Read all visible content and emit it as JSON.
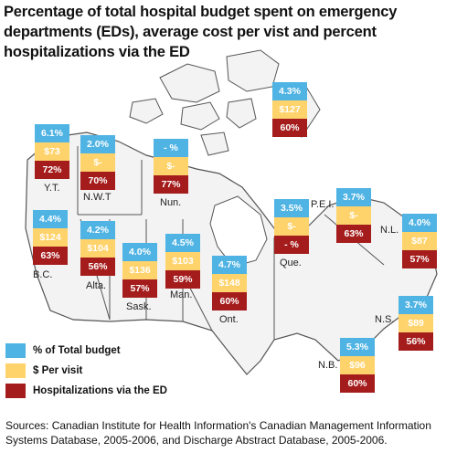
{
  "title": "Percentage of total hospital budget spent on emergency departments (EDs), average cost per vist and percent hospitalizations via the ED",
  "colors": {
    "pct_budget": "#4fb3e3",
    "cost_per_visit": "#ffd36b",
    "hospitalizations": "#a51c1c",
    "land": "#f3f3f3",
    "border": "#555555"
  },
  "regions": [
    {
      "id": "yt",
      "name": "Y.T.",
      "pct": "6.1%",
      "cost": "$73",
      "hosp": "72%"
    },
    {
      "id": "nwt",
      "name": "N.W.T",
      "pct": "2.0%",
      "cost": "$-",
      "hosp": "70%"
    },
    {
      "id": "nun",
      "name": "Nun.",
      "pct": "- %",
      "cost": "$-",
      "hosp": "77%"
    },
    {
      "id": "canada",
      "name": "",
      "pct": "4.3%",
      "cost": "$127",
      "hosp": "60%"
    },
    {
      "id": "bc",
      "name": "B.C.",
      "pct": "4.4%",
      "cost": "$124",
      "hosp": "63%"
    },
    {
      "id": "alta",
      "name": "Alta.",
      "pct": "4.2%",
      "cost": "$104",
      "hosp": "56%"
    },
    {
      "id": "sask",
      "name": "Sask.",
      "pct": "4.0%",
      "cost": "$136",
      "hosp": "57%"
    },
    {
      "id": "man",
      "name": "Man.",
      "pct": "4.5%",
      "cost": "$103",
      "hosp": "59%"
    },
    {
      "id": "ont",
      "name": "Ont.",
      "pct": "4.7%",
      "cost": "$148",
      "hosp": "60%"
    },
    {
      "id": "que",
      "name": "Que.",
      "pct": "3.5%",
      "cost": "$-",
      "hosp": "- %"
    },
    {
      "id": "pei",
      "name": "P.E.I.",
      "pct": "3.7%",
      "cost": "$-",
      "hosp": "63%"
    },
    {
      "id": "nl",
      "name": "N.L.",
      "pct": "4.0%",
      "cost": "$87",
      "hosp": "57%"
    },
    {
      "id": "ns",
      "name": "N.S.",
      "pct": "3.7%",
      "cost": "$89",
      "hosp": "56%"
    },
    {
      "id": "nb",
      "name": "N.B.",
      "pct": "5.3%",
      "cost": "$96",
      "hosp": "60%"
    }
  ],
  "legend": [
    {
      "label": "% of Total budget",
      "color": "#4fb3e3"
    },
    {
      "label": "$ Per visit",
      "color": "#ffd36b"
    },
    {
      "label": "Hospitalizations via the ED",
      "color": "#a51c1c"
    }
  ],
  "sources": "Sources: Canadian Institute for Health Information's Canadian Management Information Systems Database, 2005-2006, and Discharge Abstract Database, 2005-2006."
}
